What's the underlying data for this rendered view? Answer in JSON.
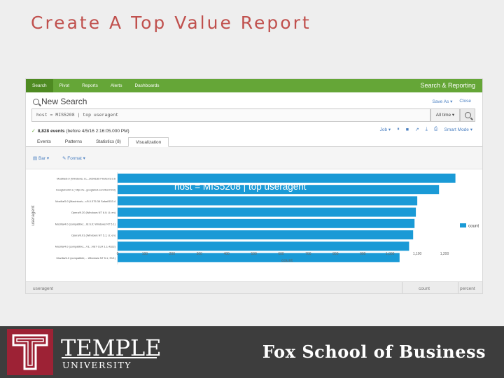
{
  "slide": {
    "title": "Create A Top Value Report",
    "brand_name": "TEMPLE",
    "brand_sub": "UNIVERSITY",
    "school": "Fox School of Business"
  },
  "appbar": {
    "nav": [
      "Search",
      "Pivot",
      "Reports",
      "Alerts",
      "Dashboards"
    ],
    "active": "Search",
    "brand": "Search & Reporting",
    "color": "#65a637"
  },
  "header": {
    "title": "New Search",
    "save_as": "Save As ▾",
    "close": "Close"
  },
  "search": {
    "query": "host = MIS5208 | top useragent",
    "time_range": "All time ▾"
  },
  "status": {
    "count": "8,828 events",
    "detail": "(before 4/5/16 2:16:05.000 PM)",
    "job": "Job ▾",
    "mode": "Smart Mode ▾"
  },
  "tabs": [
    "Events",
    "Patterns",
    "Statistics (8)",
    "Visualization"
  ],
  "active_tab": "Visualization",
  "format": {
    "chart_type": "Bar ▾",
    "format": "Format ▾"
  },
  "overlay_label": "host = MIS5208 | top useragent",
  "chart_data": {
    "type": "bar",
    "orientation": "horizontal",
    "categories": [
      "Mozilla/5.0 (Windows; U;...3059155 Firefox/3.0.6",
      "Googlebot/2.1 ( http://w...googlebot.com/bot.html)",
      "Mozilla/5.0 (Macintosh;...r/5.0.375.38 Safari/533.4",
      "Opera/9.20 (Windows NT 6.0; U; en)",
      "Mozilla/4.0 (compatible;...IE 6.0; Windows NT 5.1)",
      "Opera/9.01 (Windows NT 5.1; U; en)",
      "Mozilla/4.0 (compatible;...V1; .NET CLR 1.1.4322)",
      "Mozilla/4.0 (compatible;... Windows NT 5.1; SV1)"
    ],
    "series": [
      {
        "name": "count",
        "values": [
          1240,
          1180,
          1100,
          1095,
          1090,
          1085,
          1070,
          1035
        ]
      }
    ],
    "xlabel": "count",
    "ylabel": "useragent",
    "xticks": [
      "0",
      "100",
      "200",
      "300",
      "400",
      "500",
      "600",
      "700",
      "800",
      "900",
      "1,000",
      "1,100",
      "1,200"
    ],
    "xlim": [
      0,
      1200
    ],
    "legend": "right",
    "bar_color": "#1a9ad6"
  },
  "table_footer": {
    "col1": "useragent",
    "col2": "count",
    "col3": "percent"
  }
}
